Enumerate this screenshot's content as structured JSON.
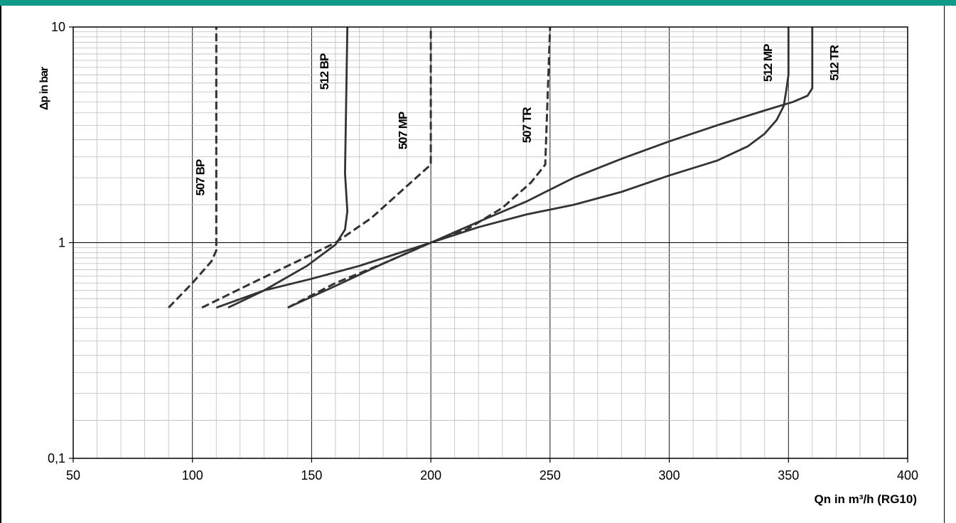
{
  "colors": {
    "header": "#0f9a8a",
    "curve": "#333333",
    "grid_major": "#000000",
    "grid_minor": "#bdbdbd"
  },
  "chart_data": {
    "type": "line",
    "title": "",
    "xlabel": "Qn in m³/h (RG10)",
    "ylabel": "Δp in bar",
    "xlim": [
      50,
      400
    ],
    "ylim": [
      0.1,
      10
    ],
    "yscale": "log",
    "grid": true,
    "x_ticks": [
      "50",
      "100",
      "150",
      "200",
      "250",
      "300",
      "350",
      "400"
    ],
    "y_ticks": [
      "0,1",
      "1",
      "10"
    ],
    "series": [
      {
        "name": "507 BP",
        "dashed": true,
        "label_at": [
          105,
          2.0
        ],
        "points": [
          [
            90,
            0.5
          ],
          [
            100,
            0.65
          ],
          [
            108,
            0.82
          ],
          [
            110,
            0.92
          ],
          [
            110,
            10
          ]
        ]
      },
      {
        "name": "512 BP",
        "dashed": false,
        "label_at": [
          157,
          6.2
        ],
        "points": [
          [
            115,
            0.5
          ],
          [
            130,
            0.6
          ],
          [
            148,
            0.78
          ],
          [
            160,
            0.98
          ],
          [
            164,
            1.15
          ],
          [
            165,
            1.4
          ],
          [
            164,
            2.1
          ],
          [
            165,
            10
          ]
        ]
      },
      {
        "name": "507 MP",
        "dashed": true,
        "label_at": [
          190,
          3.3
        ],
        "points": [
          [
            104,
            0.5
          ],
          [
            125,
            0.65
          ],
          [
            147,
            0.85
          ],
          [
            160,
            1.0
          ],
          [
            175,
            1.3
          ],
          [
            188,
            1.75
          ],
          [
            197,
            2.15
          ],
          [
            200,
            2.3
          ],
          [
            200,
            10
          ]
        ]
      },
      {
        "name": "507 TR",
        "dashed": true,
        "label_at": [
          242,
          3.5
        ],
        "points": [
          [
            140,
            0.5
          ],
          [
            160,
            0.65
          ],
          [
            180,
            0.8
          ],
          [
            200,
            1.0
          ],
          [
            215,
            1.15
          ],
          [
            230,
            1.45
          ],
          [
            242,
            1.9
          ],
          [
            248,
            2.3
          ],
          [
            250,
            10
          ]
        ]
      },
      {
        "name": "512 MP",
        "dashed": false,
        "label_at": [
          343,
          6.8
        ],
        "points": [
          [
            140,
            0.5
          ],
          [
            160,
            0.63
          ],
          [
            180,
            0.8
          ],
          [
            200,
            1.0
          ],
          [
            220,
            1.25
          ],
          [
            240,
            1.55
          ],
          [
            260,
            2.0
          ],
          [
            280,
            2.45
          ],
          [
            300,
            2.95
          ],
          [
            320,
            3.5
          ],
          [
            340,
            4.1
          ],
          [
            352,
            4.5
          ],
          [
            358,
            4.8
          ],
          [
            360,
            5.2
          ],
          [
            360,
            10
          ]
        ]
      },
      {
        "name": "512 TR",
        "dashed": false,
        "label_at": [
          371,
          6.8
        ],
        "points": [
          [
            110,
            0.5
          ],
          [
            130,
            0.6
          ],
          [
            150,
            0.68
          ],
          [
            170,
            0.78
          ],
          [
            200,
            1.0
          ],
          [
            220,
            1.18
          ],
          [
            240,
            1.35
          ],
          [
            260,
            1.5
          ],
          [
            280,
            1.72
          ],
          [
            300,
            2.05
          ],
          [
            320,
            2.4
          ],
          [
            333,
            2.8
          ],
          [
            340,
            3.2
          ],
          [
            345,
            3.7
          ],
          [
            348,
            4.3
          ],
          [
            349,
            5.0
          ],
          [
            350,
            6.0
          ],
          [
            350,
            10
          ]
        ]
      }
    ]
  }
}
